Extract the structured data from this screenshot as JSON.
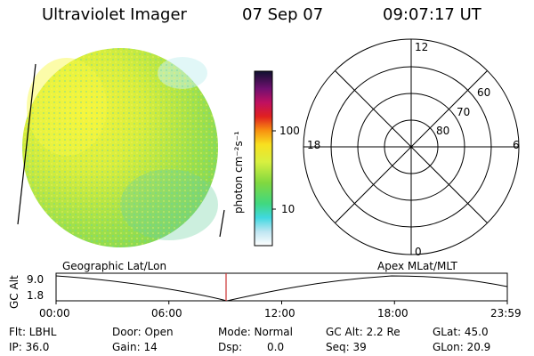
{
  "header": {
    "instrument": "Ultraviolet Imager",
    "date": "07 Sep 07",
    "time": "09:07:17 UT"
  },
  "colorbar": {
    "unit_label": "photon cm⁻²s⁻¹",
    "ticks": [
      "100",
      "10"
    ]
  },
  "polar_plot": {
    "mlt_labels": {
      "top": "12",
      "right": "6",
      "bottom": "0",
      "left": "18"
    },
    "lat_labels": [
      "60",
      "70",
      "80"
    ]
  },
  "timeline": {
    "left_caption": "Geographic Lat/Lon",
    "right_caption": "Apex  MLat/MLT",
    "axis_label": "GC Alt",
    "y_ticks": [
      "9.0",
      "1.8"
    ],
    "x_ticks": [
      "00:00",
      "06:00",
      "12:00",
      "18:00",
      "23:59"
    ],
    "marker_time": "09:07:17",
    "marker_color": "#cc3333"
  },
  "status": {
    "flt": "Flt: LBHL",
    "ip": "IP: 36.0",
    "door": "Door: Open",
    "gain": "Gain: 14",
    "mode": "Mode: Normal",
    "dsp_label": "Dsp:",
    "dsp_value": "0.0",
    "gc_alt": "GC Alt: 2.2 Re",
    "seq": "Seq: 39",
    "glat": "GLat:  45.0",
    "glon": "GLon:  20.9"
  }
}
